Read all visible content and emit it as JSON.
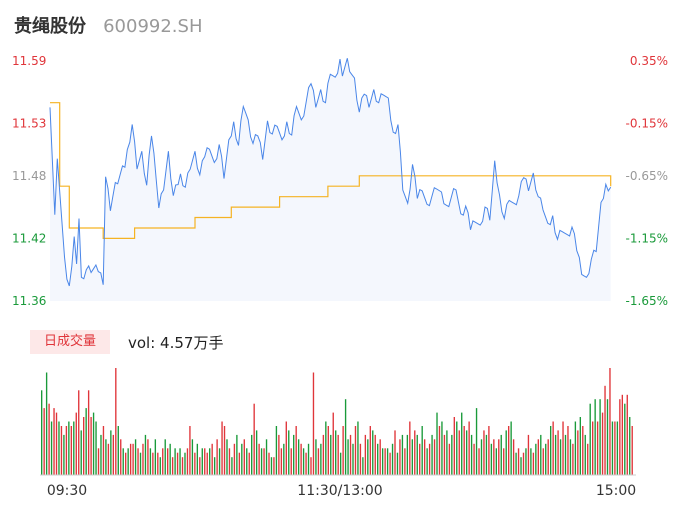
{
  "header": {
    "name": "贵绳股份",
    "code": "600992.SH"
  },
  "volume_panel": {
    "badge": "日成交量",
    "vol_label": "vol: 4.57万手"
  },
  "colors": {
    "price_line": "#4a86e8",
    "price_fill": "#f4f7fd",
    "avg_line": "#f5b323",
    "up": "#e0353a",
    "down": "#1a9a3a",
    "neutral": "#999999",
    "axis_line": "#cccccc"
  },
  "chart_data": {
    "type": "line",
    "prev_close": 11.55,
    "price_axis": {
      "ticks": [
        {
          "value": 11.59,
          "label": "11.59",
          "pct": "0.35%",
          "tone": "up"
        },
        {
          "value": 11.53,
          "label": "11.53",
          "pct": "-0.15%",
          "tone": "up"
        },
        {
          "value": 11.48,
          "label": "11.48",
          "pct": "-0.65%",
          "tone": "neutral"
        },
        {
          "value": 11.42,
          "label": "11.42",
          "pct": "-1.15%",
          "tone": "down"
        },
        {
          "value": 11.36,
          "label": "11.36",
          "pct": "-1.65%",
          "tone": "down"
        }
      ],
      "ylim": [
        11.36,
        11.59
      ]
    },
    "time_axis": {
      "labels": [
        "09:30",
        "11:30/13:00",
        "15:00"
      ],
      "total_minutes": 240
    },
    "price_anchors": [
      [
        0,
        11.55
      ],
      [
        2,
        11.44
      ],
      [
        3,
        11.5
      ],
      [
        5,
        11.43
      ],
      [
        7,
        11.38
      ],
      [
        8,
        11.37
      ],
      [
        10,
        11.42
      ],
      [
        11,
        11.4
      ],
      [
        12,
        11.44
      ],
      [
        13,
        11.38
      ],
      [
        15,
        11.39
      ],
      [
        20,
        11.39
      ],
      [
        22,
        11.38
      ],
      [
        23,
        11.48
      ],
      [
        25,
        11.45
      ],
      [
        27,
        11.47
      ],
      [
        29,
        11.48
      ],
      [
        31,
        11.49
      ],
      [
        34,
        11.53
      ],
      [
        36,
        11.49
      ],
      [
        38,
        11.5
      ],
      [
        40,
        11.47
      ],
      [
        42,
        11.52
      ],
      [
        44,
        11.48
      ],
      [
        45,
        11.45
      ],
      [
        47,
        11.47
      ],
      [
        49,
        11.5
      ],
      [
        51,
        11.46
      ],
      [
        54,
        11.48
      ],
      [
        56,
        11.47
      ],
      [
        58,
        11.49
      ],
      [
        60,
        11.5
      ],
      [
        62,
        11.48
      ],
      [
        64,
        11.5
      ],
      [
        66,
        11.51
      ],
      [
        68,
        11.49
      ],
      [
        70,
        11.51
      ],
      [
        72,
        11.48
      ],
      [
        74,
        11.51
      ],
      [
        76,
        11.53
      ],
      [
        78,
        11.51
      ],
      [
        80,
        11.55
      ],
      [
        82,
        11.53
      ],
      [
        84,
        11.51
      ],
      [
        86,
        11.52
      ],
      [
        88,
        11.5
      ],
      [
        90,
        11.53
      ],
      [
        92,
        11.52
      ],
      [
        94,
        11.53
      ],
      [
        96,
        11.51
      ],
      [
        98,
        11.53
      ],
      [
        100,
        11.52
      ],
      [
        102,
        11.55
      ],
      [
        104,
        11.53
      ],
      [
        106,
        11.55
      ],
      [
        108,
        11.57
      ],
      [
        110,
        11.55
      ],
      [
        112,
        11.56
      ],
      [
        114,
        11.55
      ],
      [
        116,
        11.58
      ],
      [
        118,
        11.57
      ],
      [
        119,
        11.58
      ],
      [
        120,
        11.59
      ],
      [
        121,
        11.58
      ],
      [
        123,
        11.59
      ],
      [
        126,
        11.57
      ],
      [
        128,
        11.54
      ],
      [
        130,
        11.56
      ],
      [
        132,
        11.55
      ],
      [
        134,
        11.56
      ],
      [
        136,
        11.55
      ],
      [
        138,
        11.56
      ],
      [
        140,
        11.55
      ],
      [
        142,
        11.52
      ],
      [
        144,
        11.53
      ],
      [
        146,
        11.47
      ],
      [
        148,
        11.45
      ],
      [
        150,
        11.49
      ],
      [
        152,
        11.46
      ],
      [
        154,
        11.47
      ],
      [
        156,
        11.45
      ],
      [
        158,
        11.46
      ],
      [
        160,
        11.47
      ],
      [
        162,
        11.46
      ],
      [
        164,
        11.45
      ],
      [
        166,
        11.46
      ],
      [
        168,
        11.47
      ],
      [
        170,
        11.44
      ],
      [
        172,
        11.45
      ],
      [
        174,
        11.43
      ],
      [
        176,
        11.44
      ],
      [
        178,
        11.43
      ],
      [
        180,
        11.45
      ],
      [
        182,
        11.44
      ],
      [
        184,
        11.49
      ],
      [
        186,
        11.46
      ],
      [
        188,
        11.44
      ],
      [
        190,
        11.46
      ],
      [
        192,
        11.45
      ],
      [
        194,
        11.46
      ],
      [
        196,
        11.48
      ],
      [
        198,
        11.47
      ],
      [
        200,
        11.48
      ],
      [
        202,
        11.46
      ],
      [
        204,
        11.45
      ],
      [
        206,
        11.43
      ],
      [
        208,
        11.44
      ],
      [
        210,
        11.42
      ],
      [
        212,
        11.43
      ],
      [
        214,
        11.42
      ],
      [
        216,
        11.43
      ],
      [
        218,
        11.41
      ],
      [
        220,
        11.39
      ],
      [
        222,
        11.38
      ],
      [
        224,
        11.4
      ],
      [
        226,
        11.41
      ],
      [
        228,
        11.45
      ],
      [
        230,
        11.47
      ],
      [
        232,
        11.47
      ]
    ],
    "avg_anchors": [
      [
        0,
        11.55
      ],
      [
        4,
        11.47
      ],
      [
        8,
        11.43
      ],
      [
        22,
        11.42
      ],
      [
        25,
        11.42
      ],
      [
        35,
        11.43
      ],
      [
        60,
        11.44
      ],
      [
        75,
        11.45
      ],
      [
        95,
        11.46
      ],
      [
        115,
        11.47
      ],
      [
        128,
        11.48
      ],
      [
        200,
        11.48
      ],
      [
        225,
        11.48
      ],
      [
        232,
        11.47
      ]
    ],
    "volume_series": [
      95,
      75,
      115,
      80,
      60,
      75,
      70,
      60,
      55,
      45,
      55,
      60,
      55,
      60,
      70,
      95,
      50,
      65,
      75,
      95,
      65,
      70,
      60,
      30,
      45,
      55,
      40,
      35,
      50,
      45,
      120,
      55,
      40,
      30,
      25,
      30,
      35,
      35,
      40,
      30,
      25,
      35,
      45,
      40,
      30,
      25,
      40,
      25,
      20,
      30,
      40,
      30,
      35,
      20,
      30,
      25,
      30,
      20,
      25,
      30,
      55,
      40,
      25,
      35,
      20,
      30,
      30,
      25,
      30,
      35,
      20,
      40,
      30,
      60,
      55,
      40,
      30,
      20,
      35,
      45,
      25,
      35,
      40,
      30,
      25,
      45,
      80,
      50,
      35,
      30,
      30,
      40,
      25,
      20,
      20,
      55,
      45,
      30,
      35,
      60,
      50,
      30,
      45,
      55,
      40,
      35,
      30,
      25,
      35,
      20,
      115,
      40,
      30,
      35,
      45,
      60,
      55,
      45,
      70,
      50,
      45,
      25,
      55,
      85,
      40,
      45,
      35,
      55,
      60,
      35,
      20,
      45,
      40,
      55,
      50,
      45,
      35,
      40,
      30,
      30,
      30,
      25,
      35,
      50,
      25,
      40,
      45,
      30,
      45,
      60,
      40,
      50,
      45,
      35,
      55,
      40,
      30,
      35,
      45,
      40,
      70,
      55,
      60,
      45,
      50,
      35,
      45,
      65,
      60,
      50,
      70,
      55,
      50,
      60,
      45,
      35,
      75,
      30,
      40,
      50,
      45,
      55,
      35,
      40,
      30,
      40,
      45,
      30,
      50,
      55,
      60,
      40,
      25,
      30,
      20,
      25,
      30,
      45,
      30,
      25,
      35,
      40,
      45,
      30,
      35,
      40,
      55,
      60,
      45,
      50,
      40,
      60,
      45,
      55,
      40,
      35,
      60,
      50,
      65,
      55,
      45,
      35,
      80,
      60,
      85,
      60,
      85,
      70,
      100,
      85,
      120,
      60,
      60,
      60,
      85,
      90,
      80,
      90,
      65,
      55
    ],
    "volume_colors": [
      "d",
      "u",
      "d",
      "u",
      "d",
      "u",
      "u",
      "d",
      "u",
      "d",
      "u",
      "d",
      "u",
      "d",
      "u",
      "u",
      "d",
      "u",
      "d",
      "u",
      "u",
      "d",
      "d",
      "u",
      "d",
      "u",
      "d",
      "u",
      "d",
      "u",
      "u",
      "d",
      "u",
      "d",
      "u",
      "d",
      "u",
      "u",
      "d",
      "u",
      "d",
      "u",
      "d",
      "u",
      "d",
      "u",
      "d",
      "u",
      "d",
      "u",
      "d",
      "u",
      "d",
      "u",
      "d",
      "u",
      "d",
      "u",
      "d",
      "u",
      "u",
      "d",
      "u",
      "d",
      "u",
      "d",
      "u",
      "u",
      "d",
      "u",
      "d",
      "u",
      "d",
      "u",
      "u",
      "d",
      "u",
      "d",
      "u",
      "d",
      "u",
      "d",
      "u",
      "d",
      "u",
      "d",
      "u",
      "d",
      "u",
      "d",
      "u",
      "d",
      "u",
      "d",
      "u",
      "d",
      "u",
      "u",
      "d",
      "u",
      "d",
      "u",
      "d",
      "u",
      "d",
      "u",
      "d",
      "u",
      "d",
      "u",
      "u",
      "d",
      "u",
      "d",
      "u",
      "d",
      "u",
      "d",
      "u",
      "d",
      "u",
      "d",
      "u",
      "d",
      "d",
      "u",
      "d",
      "u",
      "d",
      "u",
      "d",
      "u",
      "d",
      "u",
      "d",
      "u",
      "d",
      "u",
      "d",
      "u",
      "d",
      "u",
      "d",
      "u",
      "d",
      "u",
      "d",
      "u",
      "d",
      "u",
      "d",
      "u",
      "d",
      "u",
      "d",
      "u",
      "d",
      "u",
      "d",
      "u",
      "d",
      "u",
      "d",
      "u",
      "d",
      "u",
      "d",
      "u",
      "d",
      "u",
      "d",
      "u",
      "d",
      "u",
      "d",
      "u",
      "d",
      "u",
      "d",
      "u",
      "d",
      "u",
      "d",
      "u",
      "d",
      "u",
      "d",
      "u",
      "d",
      "u",
      "d",
      "u",
      "d",
      "u",
      "d",
      "u",
      "d",
      "u",
      "d",
      "u",
      "d",
      "u",
      "d",
      "u",
      "d",
      "u",
      "d",
      "u",
      "d",
      "u",
      "d",
      "u",
      "d",
      "u",
      "d",
      "u",
      "d",
      "u",
      "d",
      "u",
      "d",
      "u",
      "d",
      "u",
      "d",
      "u",
      "d",
      "u",
      "u",
      "d",
      "u",
      "d",
      "u",
      "d",
      "u",
      "u",
      "d",
      "u",
      "d",
      "u"
    ]
  }
}
